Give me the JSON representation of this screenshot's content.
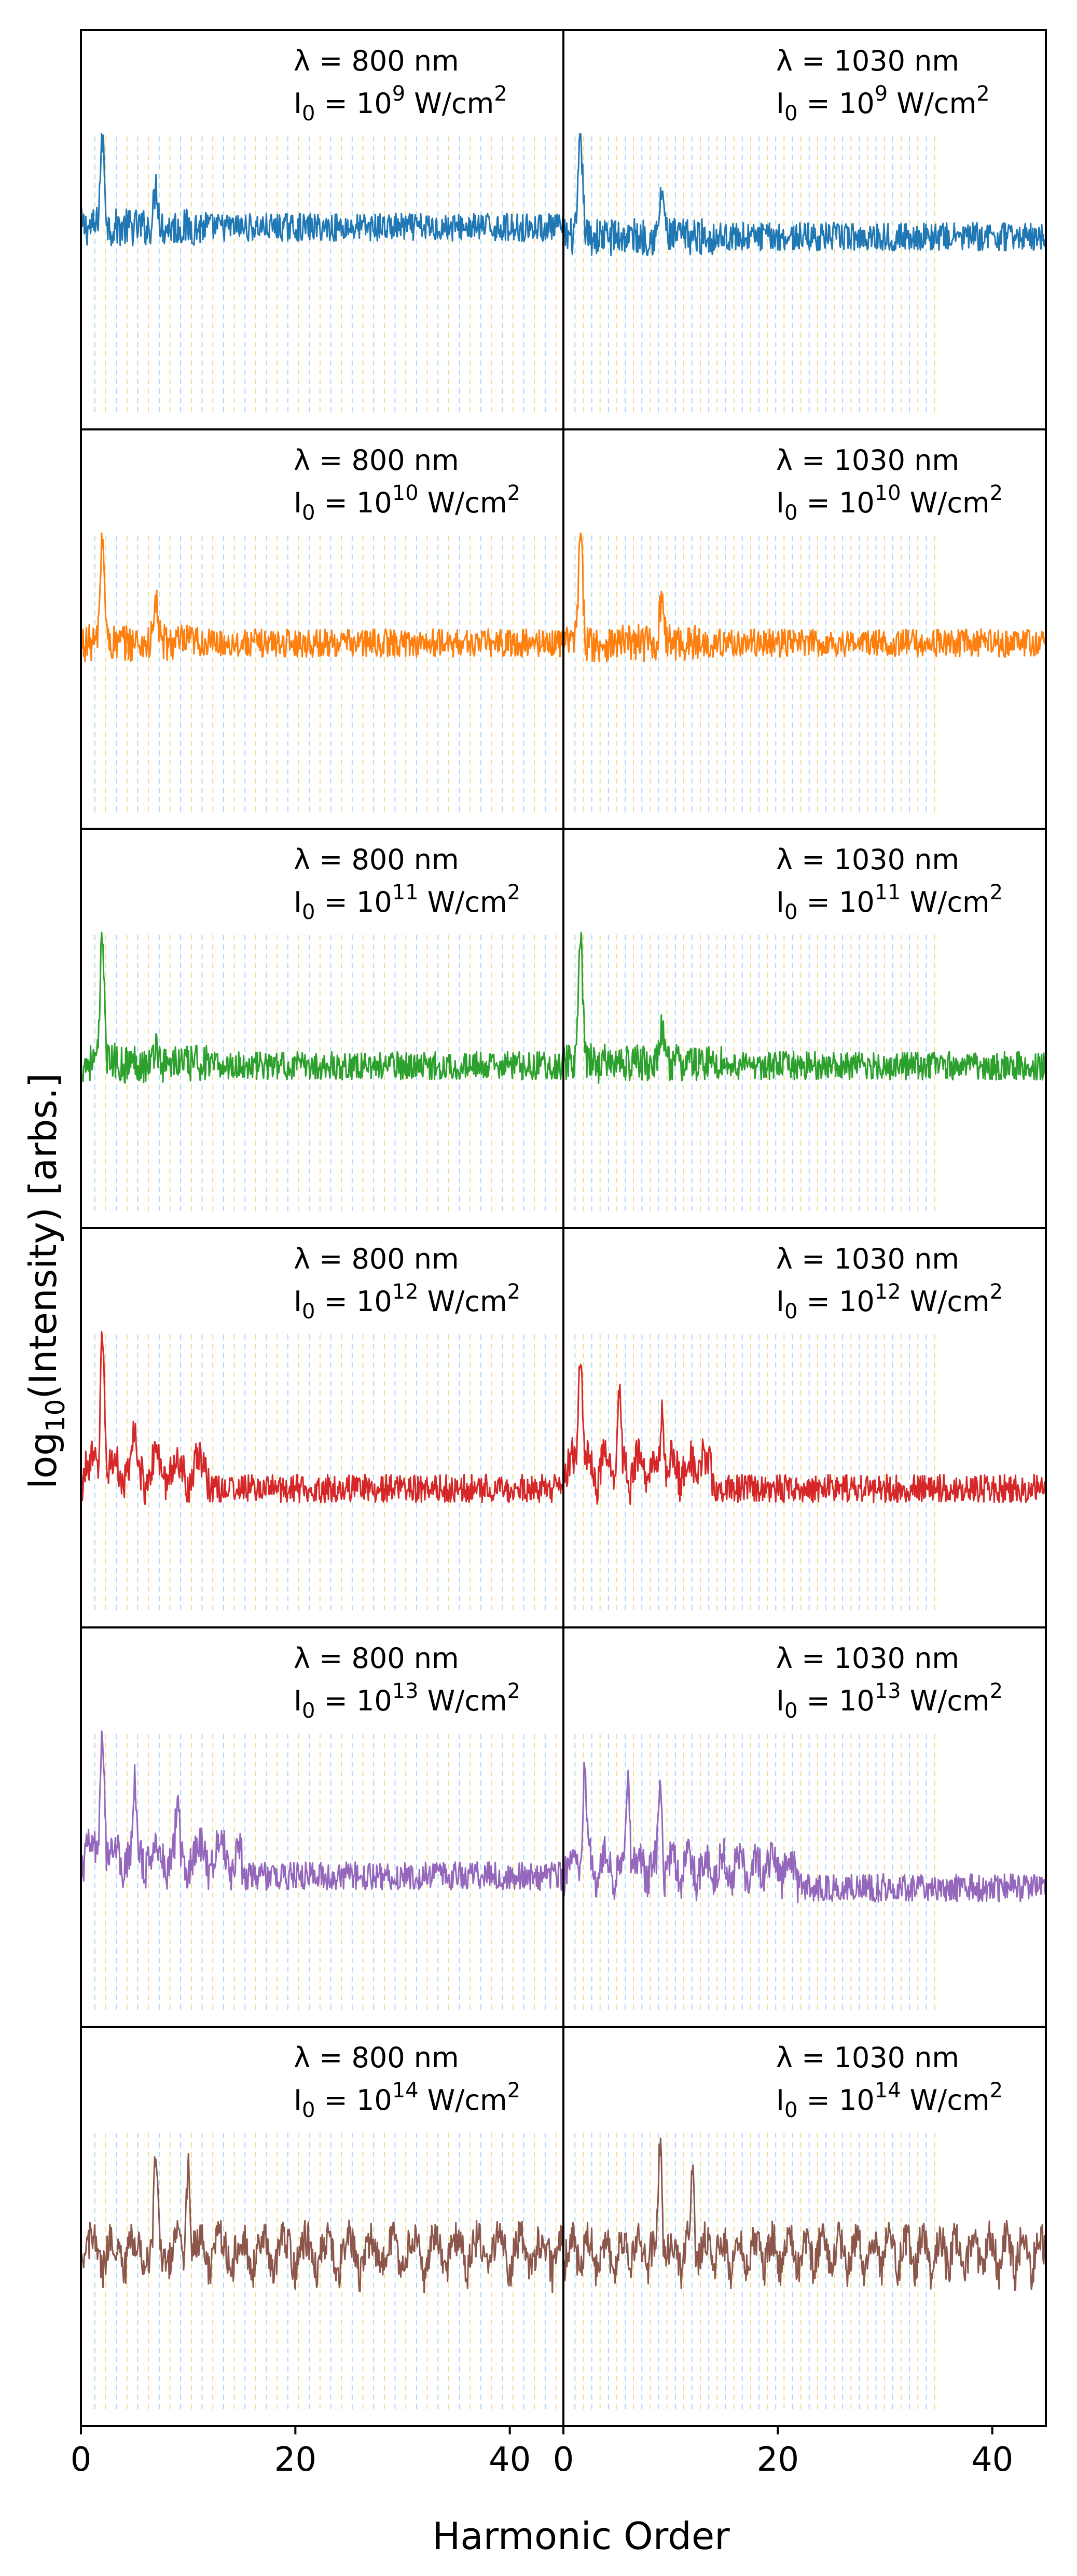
{
  "figure": {
    "xlabel": "Harmonic Order",
    "ylabel_main": "log",
    "ylabel_sub": "10",
    "ylabel_rest": "(Intensity) [arbs.]"
  },
  "chart_data": {
    "type": "line",
    "xlabel": "Harmonic Order",
    "ylabel": "log10(Intensity) [arbs.]",
    "xlim": [
      0,
      45
    ],
    "x_ticks": [
      0,
      20,
      40
    ],
    "y_ticks_shown": false,
    "grid": "dashed vertical guide lines at harmonic orders (blue odd, yellow even)",
    "layout": "6 rows x 2 columns, shared x-axis",
    "columns": [
      {
        "wavelength_label": "λ =  800 nm",
        "wavelength_nm": 800
      },
      {
        "wavelength_label": "λ =  1030 nm",
        "wavelength_nm": 1030
      }
    ],
    "rows": [
      {
        "intensity_label_base": "I",
        "intensity_label_sub": "0",
        "intensity_label_eq": " = 10",
        "intensity_exp": "9",
        "intensity_unit": " W/cm",
        "unit_sup": "2",
        "color": "#1f77b4"
      },
      {
        "intensity_label_base": "I",
        "intensity_label_sub": "0",
        "intensity_label_eq": " = 10",
        "intensity_exp": "10",
        "intensity_unit": " W/cm",
        "unit_sup": "2",
        "color": "#ff7f0e"
      },
      {
        "intensity_label_base": "I",
        "intensity_label_sub": "0",
        "intensity_label_eq": " = 10",
        "intensity_exp": "11",
        "intensity_unit": " W/cm",
        "unit_sup": "2",
        "color": "#2ca02c"
      },
      {
        "intensity_label_base": "I",
        "intensity_label_sub": "0",
        "intensity_label_eq": " = 10",
        "intensity_exp": "12",
        "intensity_unit": " W/cm",
        "unit_sup": "2",
        "color": "#d62728"
      },
      {
        "intensity_label_base": "I",
        "intensity_label_sub": "0",
        "intensity_label_eq": " = 10",
        "intensity_exp": "13",
        "intensity_unit": " W/cm",
        "unit_sup": "2",
        "color": "#9467bd"
      },
      {
        "intensity_label_base": "I",
        "intensity_label_sub": "0",
        "intensity_label_eq": " = 10",
        "intensity_exp": "14",
        "intensity_unit": " W/cm",
        "unit_sup": "2",
        "color": "#8c564b"
      }
    ],
    "panels": [
      {
        "row": 0,
        "col": 0,
        "base": 0.62,
        "floor": -0.15,
        "peaks": [
          [
            2,
            1.0
          ],
          [
            7,
            0.8
          ]
        ],
        "cutoff": 12,
        "plateau_level": 0.45
      },
      {
        "row": 0,
        "col": 1,
        "base": 0.58,
        "floor": 0.08,
        "peaks": [
          [
            1.6,
            1.0
          ],
          [
            9.2,
            0.78
          ]
        ],
        "cutoff": 14,
        "plateau_level": 0.5
      },
      {
        "row": 1,
        "col": 0,
        "base": 0.55,
        "floor": 0.12,
        "peaks": [
          [
            2,
            1.0
          ],
          [
            7,
            0.72
          ]
        ],
        "cutoff": 11,
        "plateau_level": 0.45
      },
      {
        "row": 1,
        "col": 1,
        "base": 0.55,
        "floor": 0.18,
        "peaks": [
          [
            1.6,
            1.0
          ],
          [
            9.2,
            0.76
          ]
        ],
        "cutoff": 13,
        "plateau_level": 0.45
      },
      {
        "row": 2,
        "col": 0,
        "base": 0.45,
        "floor": 0.08,
        "peaks": [
          [
            2,
            1.0
          ],
          [
            7,
            0.55
          ]
        ],
        "cutoff": 12,
        "plateau_level": 0.5
      },
      {
        "row": 2,
        "col": 1,
        "base": 0.45,
        "floor": 0.14,
        "peaks": [
          [
            1.6,
            1.0
          ],
          [
            9.2,
            0.6
          ]
        ],
        "cutoff": 15,
        "plateau_level": 0.5
      },
      {
        "row": 3,
        "col": 0,
        "base": 0.35,
        "floor": 0.1,
        "peaks": [
          [
            2,
            1.0
          ],
          [
            5,
            0.6
          ],
          [
            7,
            0.55
          ],
          [
            11,
            0.45
          ]
        ],
        "cutoff": 12,
        "plateau_level": 0.7
      },
      {
        "row": 3,
        "col": 1,
        "base": 0.35,
        "floor": 0.12,
        "peaks": [
          [
            1.6,
            0.95
          ],
          [
            5.2,
            0.8
          ],
          [
            9.2,
            0.65
          ],
          [
            13,
            0.5
          ]
        ],
        "cutoff": 14,
        "plateau_level": 0.75
      },
      {
        "row": 4,
        "col": 0,
        "base": 0.4,
        "floor": 0.05,
        "peaks": [
          [
            2,
            1.0
          ],
          [
            5,
            0.8
          ],
          [
            9,
            0.75
          ]
        ],
        "cutoff": 15,
        "plateau_level": 0.8
      },
      {
        "row": 4,
        "col": 1,
        "base": 0.35,
        "floor": 0.28,
        "peaks": [
          [
            2,
            0.85
          ],
          [
            6,
            0.8
          ],
          [
            9,
            0.78
          ]
        ],
        "cutoff": 22,
        "plateau_level": 0.75
      },
      {
        "row": 5,
        "col": 0,
        "base": 0.4,
        "floor": 0.45,
        "peaks": [
          [
            7,
            0.95
          ],
          [
            10,
            0.85
          ]
        ],
        "cutoff": 45,
        "plateau_level": 0.85
      },
      {
        "row": 5,
        "col": 1,
        "base": 0.4,
        "floor": 0.45,
        "peaks": [
          [
            9,
            0.95
          ],
          [
            12,
            0.85
          ]
        ],
        "cutoff": 45,
        "plateau_level": 0.85
      }
    ]
  }
}
